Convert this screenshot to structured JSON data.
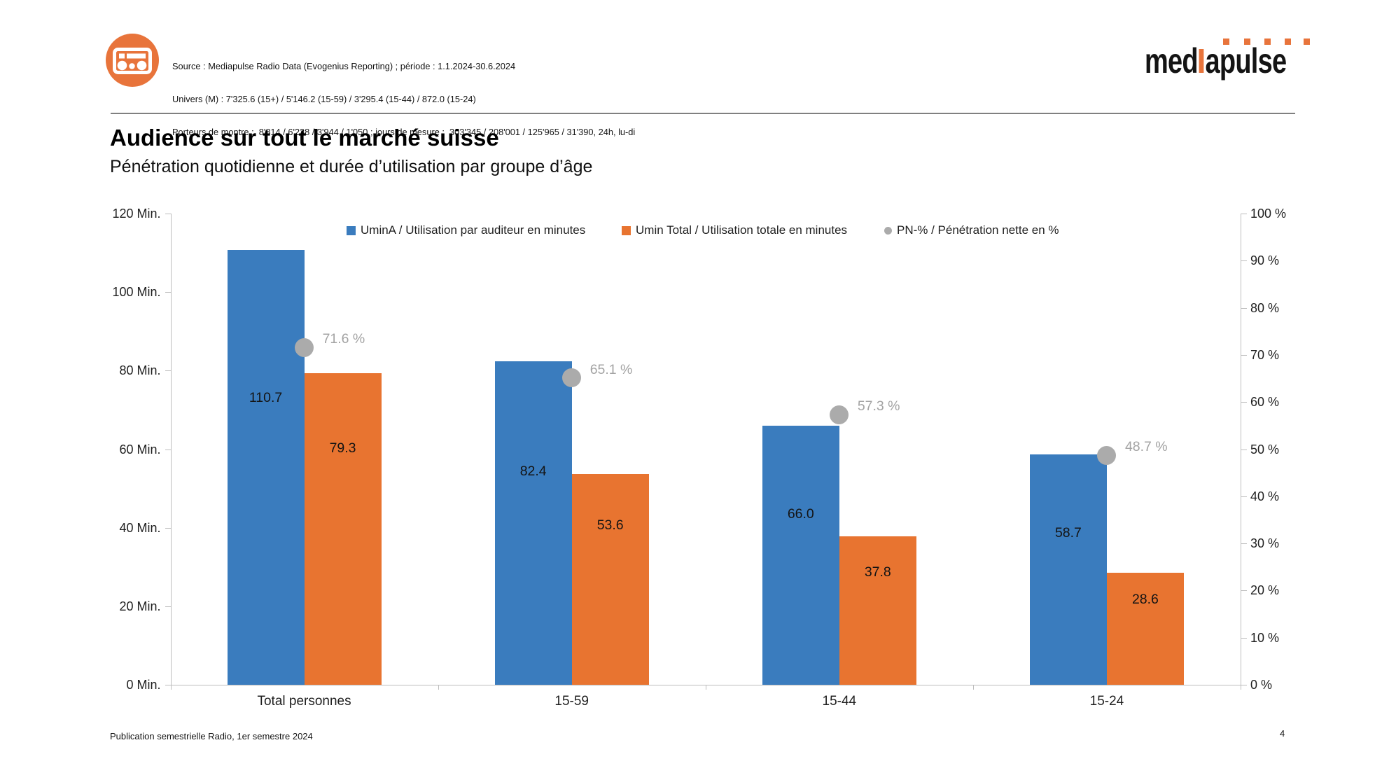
{
  "header": {
    "source_lines": [
      "Source : Mediapulse Radio Data (Evogenius Reporting) ; période : 1.1.2024-30.6.2024",
      "Univers (M) : 7'325.6 (15+) / 5'146.2 (15-59) / 3'295.4 (15-44) / 872.0 (15-24)",
      "Porteurs de montre :  8'814 / 6'238 / 3'944 / 1'050 ; jours de mesure :  303'345 / 208'001 / 125'965 / 31'390, 24h, lu-di"
    ],
    "logo": {
      "pre": "med",
      "post": "apulse",
      "dot_count": 5,
      "accent_color": "#E8743B"
    }
  },
  "page": {
    "title": "Audience sur tout le marché suisse",
    "subtitle": "Pénétration quotidienne et durée d’utilisation par groupe d’âge",
    "footer": "Publication semestrielle Radio, 1er semestre 2024",
    "page_number": "4"
  },
  "chart_data": {
    "type": "bar",
    "categories": [
      "Total personnes",
      "15-59",
      "15-44",
      "15-24"
    ],
    "series": [
      {
        "name": "UminA / Utilisation par auditeur en minutes",
        "kind": "bar",
        "axis": "left",
        "color": "#3A7CBE",
        "values": [
          110.7,
          82.4,
          66.0,
          58.7
        ]
      },
      {
        "name": "Umin Total / Utilisation totale en minutes",
        "kind": "bar",
        "axis": "left",
        "color": "#E87430",
        "values": [
          79.3,
          53.6,
          37.8,
          28.6
        ]
      },
      {
        "name": "PN-% / Pénétration nette en %",
        "kind": "point",
        "axis": "right",
        "color": "#ABABAB",
        "values": [
          71.6,
          65.1,
          57.3,
          48.7
        ]
      }
    ],
    "left_axis": {
      "min": 0,
      "max": 120,
      "step": 20,
      "suffix": " Min."
    },
    "right_axis": {
      "min": 0,
      "max": 100,
      "step": 10,
      "suffix": " %"
    },
    "value_label_decimals": 1,
    "point_label_suffix": " %",
    "grid": false,
    "legend_position": "top"
  }
}
